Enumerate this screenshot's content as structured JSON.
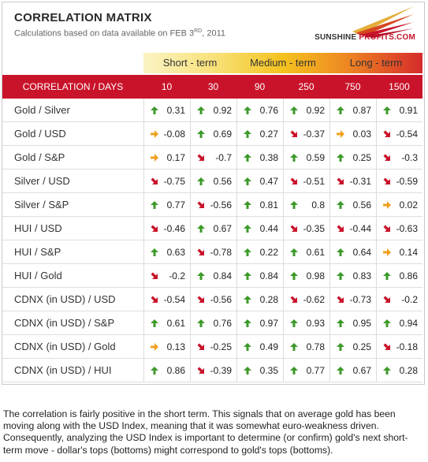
{
  "header": {
    "title": "CORRELATION MATRIX",
    "subtitle_pre": "Calculations based on data available on  FEB 3",
    "subtitle_sup": "RD",
    "subtitle_post": ", 2011",
    "logo_word1": "SUNSHINE",
    "logo_word2": "PROFITS.COM"
  },
  "terms": [
    "Short - term",
    "Medium - term",
    "Long - term"
  ],
  "table": {
    "label_header": "CORRELATION / DAYS",
    "days": [
      "10",
      "30",
      "90",
      "250",
      "750",
      "1500"
    ],
    "rows": [
      {
        "label": "Gold / Silver",
        "values": [
          "0.31",
          "0.92",
          "0.76",
          "0.92",
          "0.87",
          "0.91"
        ],
        "arrows": [
          "up",
          "up",
          "up",
          "up",
          "up",
          "up"
        ]
      },
      {
        "label": "Gold / USD",
        "values": [
          "-0.08",
          "0.69",
          "0.27",
          "-0.37",
          "0.03",
          "-0.54"
        ],
        "arrows": [
          "right",
          "up",
          "up",
          "down",
          "right",
          "down"
        ]
      },
      {
        "label": "Gold / S&P",
        "values": [
          "0.17",
          "-0.7",
          "0.38",
          "0.59",
          "0.25",
          "-0.3"
        ],
        "arrows": [
          "right",
          "down",
          "up",
          "up",
          "up",
          "down"
        ]
      },
      {
        "label": "Silver / USD",
        "values": [
          "-0.75",
          "0.56",
          "0.47",
          "-0.51",
          "-0.31",
          "-0.59"
        ],
        "arrows": [
          "down-red",
          "up",
          "up",
          "down",
          "down",
          "down"
        ]
      },
      {
        "label": "Silver / S&P",
        "values": [
          "0.77",
          "-0.56",
          "0.81",
          "0.8",
          "0.56",
          "0.02"
        ],
        "arrows": [
          "up",
          "down",
          "up",
          "up",
          "up",
          "right"
        ]
      },
      {
        "label": "HUI / USD",
        "values": [
          "-0.46",
          "0.67",
          "0.44",
          "-0.35",
          "-0.44",
          "-0.63"
        ],
        "arrows": [
          "down",
          "up",
          "up",
          "down",
          "down",
          "down"
        ]
      },
      {
        "label": "HUI / S&P",
        "values": [
          "0.63",
          "-0.78",
          "0.22",
          "0.61",
          "0.64",
          "0.14"
        ],
        "arrows": [
          "up",
          "down-red",
          "up",
          "up",
          "up",
          "right"
        ]
      },
      {
        "label": "HUI / Gold",
        "values": [
          "-0.2",
          "0.84",
          "0.84",
          "0.98",
          "0.83",
          "0.86"
        ],
        "arrows": [
          "down",
          "up",
          "up",
          "up",
          "up",
          "up"
        ]
      },
      {
        "label": "CDNX (in USD) / USD",
        "values": [
          "-0.54",
          "-0.56",
          "0.28",
          "-0.62",
          "-0.73",
          "-0.2"
        ],
        "arrows": [
          "down",
          "down",
          "up",
          "down",
          "down-red",
          "down"
        ]
      },
      {
        "label": "CDNX (in USD) / S&P",
        "values": [
          "0.61",
          "0.76",
          "0.97",
          "0.93",
          "0.95",
          "0.94"
        ],
        "arrows": [
          "up",
          "up",
          "up",
          "up",
          "up",
          "up"
        ]
      },
      {
        "label": "CDNX (in USD) / Gold",
        "values": [
          "0.13",
          "-0.25",
          "0.49",
          "0.78",
          "0.25",
          "-0.18"
        ],
        "arrows": [
          "right",
          "down",
          "up",
          "up",
          "up",
          "down"
        ]
      },
      {
        "label": "CDNX (in USD) / HUI",
        "values": [
          "0.86",
          "-0.39",
          "0.35",
          "0.77",
          "0.67",
          "0.28"
        ],
        "arrows": [
          "up",
          "down",
          "up",
          "up",
          "up",
          "up"
        ]
      }
    ]
  },
  "arrow_colors": {
    "up": "#3d9a2a",
    "down": "#c9132a",
    "down-red": "#c9132a",
    "right": "#f0a020"
  },
  "footer": {
    "text": "The correlation is fairly positive in the short term. This signals that on average gold has been moving along with the USD Index, meaning that it was somewhat euro-weakness driven. Consequently, analyzing the USD Index is important to determine (or confirm) gold's next short-term move - dollar's tops (bottoms) might correspond to gold's tops (bottoms)."
  }
}
